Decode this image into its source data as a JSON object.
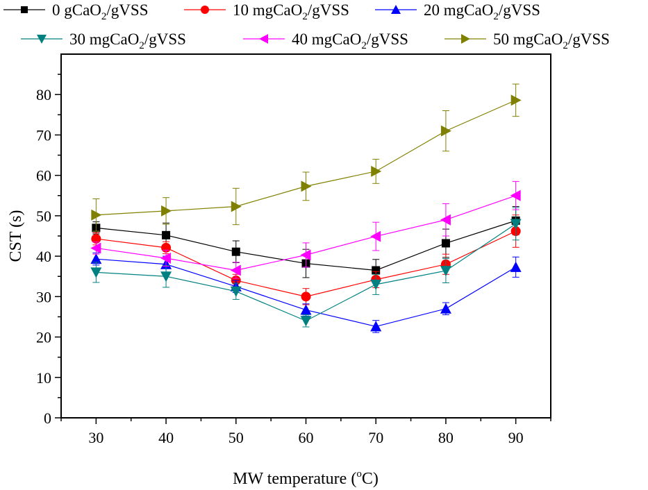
{
  "chart_data": {
    "type": "line",
    "title": "",
    "xlabel": "MW temperature (",
    "xlabel_sup": "o",
    "xlabel_tail": "C)",
    "ylabel": "CST (s)",
    "xlim": [
      25,
      95
    ],
    "ylim": [
      0,
      90
    ],
    "x": [
      30,
      40,
      50,
      60,
      70,
      80,
      90
    ],
    "xticks": [
      "30",
      "40",
      "50",
      "60",
      "70",
      "80",
      "90"
    ],
    "yticks": [
      "0",
      "10",
      "20",
      "30",
      "40",
      "50",
      "60",
      "70",
      "80"
    ],
    "legend_position": "top",
    "series": [
      {
        "name": "0 gCaO2/gVSS",
        "label_pre": "0 gCaO",
        "label_sub": "2",
        "label_post": "/gVSS",
        "color": "#000000",
        "marker": "square",
        "values": [
          47.0,
          45.2,
          41.1,
          38.2,
          36.5,
          43.2,
          48.8
        ],
        "errors": [
          1.5,
          3.0,
          2.7,
          3.5,
          2.7,
          3.5,
          3.5
        ]
      },
      {
        "name": "10 mgCaO2/gVSS",
        "label_pre": "10 mgCaO",
        "label_sub": "2",
        "label_post": "/gVSS",
        "color": "#ff0000",
        "marker": "circle",
        "values": [
          44.3,
          42.1,
          34.0,
          30.0,
          34.2,
          38.0,
          46.2
        ],
        "errors": [
          1.5,
          1.5,
          1.5,
          2.0,
          2.0,
          2.5,
          4.0
        ]
      },
      {
        "name": "20 mgCaO2/gVSS",
        "label_pre": "20 mgCaO",
        "label_sub": "2",
        "label_post": "/gVSS",
        "color": "#0000ff",
        "marker": "triangle-up",
        "values": [
          39.3,
          38.0,
          32.5,
          26.7,
          22.6,
          27.0,
          37.3
        ],
        "errors": [
          1.5,
          2.0,
          1.5,
          1.5,
          1.5,
          1.5,
          2.5
        ]
      },
      {
        "name": "30 mgCaO2/gVSS",
        "label_pre": "30 mgCaO",
        "label_sub": "2",
        "label_post": "/gVSS",
        "color": "#008080",
        "marker": "triangle-down",
        "values": [
          36.0,
          35.0,
          31.3,
          24.0,
          33.0,
          36.4,
          48.0
        ],
        "errors": [
          2.5,
          2.7,
          2.0,
          1.5,
          2.5,
          3.0,
          4.0
        ]
      },
      {
        "name": "40 mgCaO2/gVSS",
        "label_pre": "40 mgCaO",
        "label_sub": "2",
        "label_post": "/gVSS",
        "color": "#ff00ff",
        "marker": "triangle-left",
        "values": [
          42.0,
          39.5,
          36.5,
          40.3,
          44.9,
          49.0,
          55.0
        ],
        "errors": [
          1.5,
          2.0,
          2.0,
          3.0,
          3.5,
          4.0,
          3.5
        ]
      },
      {
        "name": "50 mgCaO2/gVSS",
        "label_pre": "50 mgCaO",
        "label_sub": "2",
        "label_post": "/gVSS",
        "color": "#808000",
        "marker": "triangle-right",
        "values": [
          50.2,
          51.2,
          52.3,
          57.3,
          61.0,
          71.0,
          78.6
        ],
        "errors": [
          4.0,
          3.3,
          4.5,
          3.5,
          3.0,
          5.0,
          4.0
        ]
      }
    ]
  }
}
